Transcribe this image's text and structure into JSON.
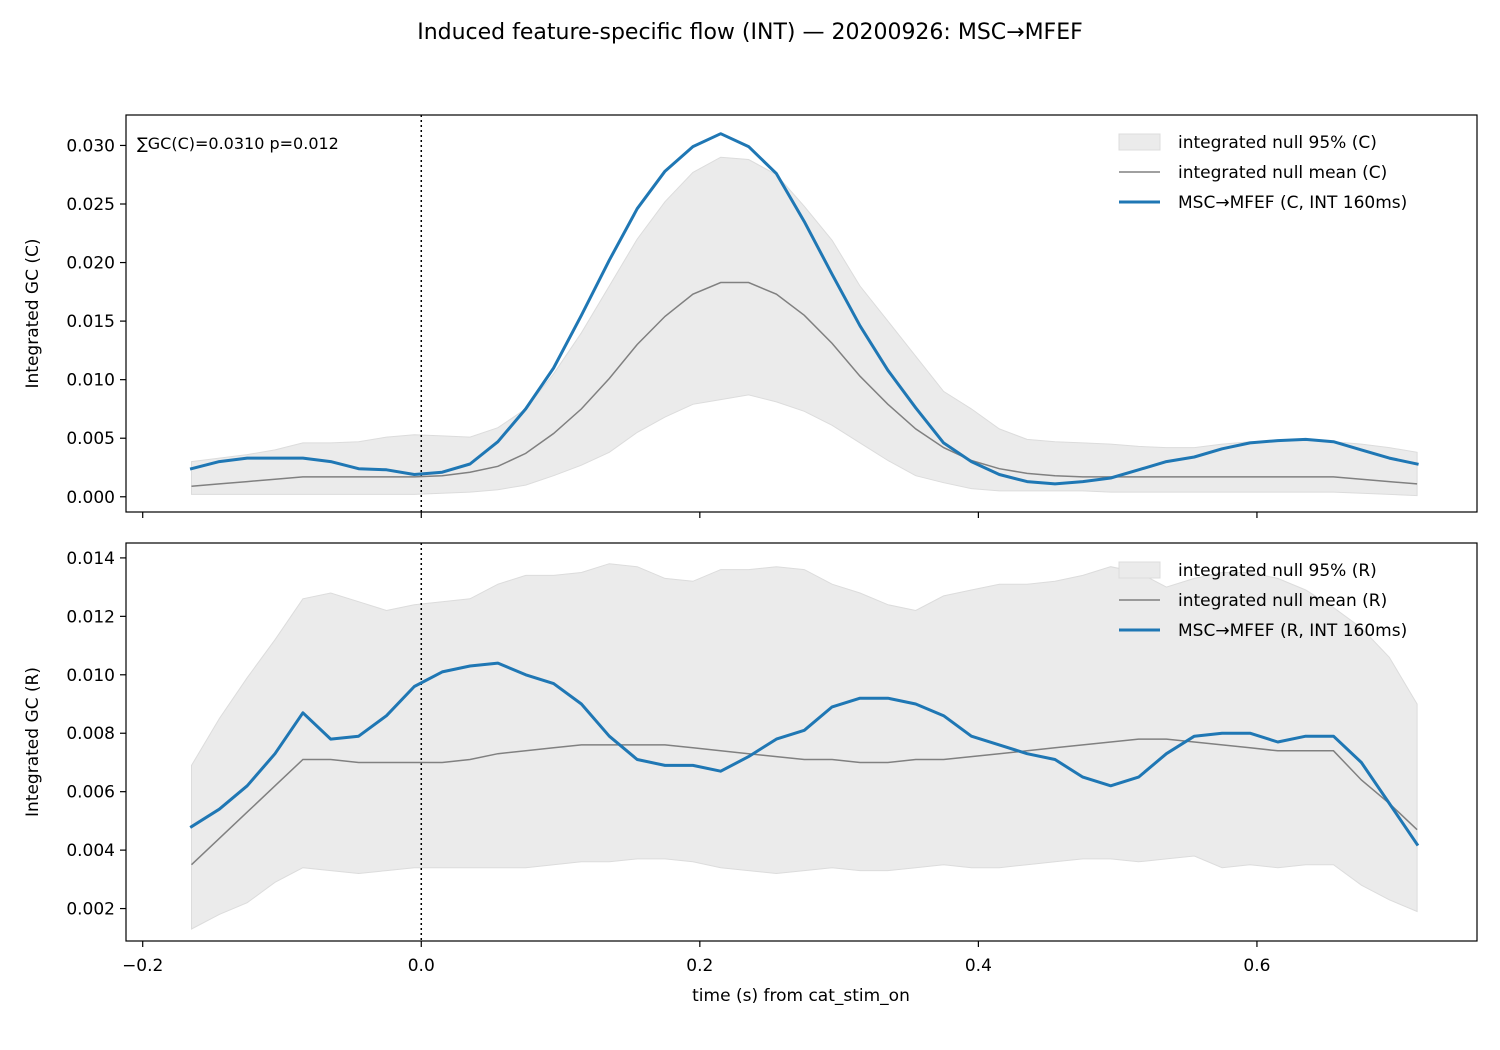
{
  "figure": {
    "title": "Induced feature-specific flow (INT) — 20200926: MSC→MFEF",
    "xlabel": "time (s) from cat_stim_on"
  },
  "colors": {
    "band": "#ebebeb",
    "band_edge": "#dcdcdc",
    "null_mean": "#808080",
    "observed": "#1f77b4",
    "axis": "#000000"
  },
  "chart_data": [
    {
      "type": "line",
      "panel": "C",
      "ylabel": "Integrated GC (C)",
      "annotation": "∑GC(C)=0.0310  p=0.012",
      "xlim": [
        -0.212,
        0.758
      ],
      "ylim": [
        -0.0013,
        0.0326
      ],
      "xticks": [
        -0.2,
        0.0,
        0.2,
        0.4,
        0.6
      ],
      "yticks": [
        0.0,
        0.005,
        0.01,
        0.015,
        0.02,
        0.025,
        0.03
      ],
      "ytick_labels": [
        "0.000",
        "0.005",
        "0.010",
        "0.015",
        "0.020",
        "0.025",
        "0.030"
      ],
      "event_line_x": 0.0,
      "legend_position": "upper right",
      "legend": [
        {
          "label": "integrated null 95% (C)",
          "kind": "band"
        },
        {
          "label": "integrated null mean (C)",
          "kind": "mean"
        },
        {
          "label": "MSC→MFEF (C, INT 160ms)",
          "kind": "observed"
        }
      ],
      "x": [
        -0.165,
        -0.145,
        -0.125,
        -0.105,
        -0.085,
        -0.065,
        -0.045,
        -0.025,
        -0.005,
        0.015,
        0.035,
        0.055,
        0.075,
        0.095,
        0.115,
        0.135,
        0.155,
        0.175,
        0.195,
        0.215,
        0.235,
        0.255,
        0.275,
        0.295,
        0.315,
        0.335,
        0.355,
        0.375,
        0.395,
        0.415,
        0.435,
        0.455,
        0.475,
        0.495,
        0.515,
        0.535,
        0.555,
        0.575,
        0.595,
        0.615,
        0.635,
        0.655,
        0.675,
        0.695,
        0.715
      ],
      "band_lower": [
        0.0002,
        0.0002,
        0.0002,
        0.0002,
        0.0002,
        0.0002,
        0.0002,
        0.0002,
        0.0002,
        0.0003,
        0.0004,
        0.0006,
        0.001,
        0.0018,
        0.0027,
        0.0038,
        0.0055,
        0.0068,
        0.0079,
        0.0083,
        0.0087,
        0.0081,
        0.0073,
        0.0061,
        0.0046,
        0.0031,
        0.0018,
        0.0012,
        0.0007,
        0.0005,
        0.0005,
        0.0005,
        0.0005,
        0.0004,
        0.0004,
        0.0004,
        0.0004,
        0.0004,
        0.0004,
        0.0004,
        0.0004,
        0.0004,
        0.0003,
        0.0002,
        0.0001
      ],
      "band_upper": [
        0.003,
        0.0033,
        0.0036,
        0.004,
        0.0046,
        0.0046,
        0.0047,
        0.0051,
        0.0053,
        0.0052,
        0.0051,
        0.0059,
        0.0075,
        0.0105,
        0.014,
        0.018,
        0.022,
        0.0252,
        0.0277,
        0.029,
        0.0288,
        0.0275,
        0.0248,
        0.0219,
        0.018,
        0.015,
        0.012,
        0.009,
        0.0075,
        0.0058,
        0.0049,
        0.0047,
        0.0046,
        0.0045,
        0.0043,
        0.0042,
        0.0042,
        0.0045,
        0.0047,
        0.0048,
        0.0048,
        0.0047,
        0.0045,
        0.0042,
        0.0038
      ],
      "null_mean": [
        0.0009,
        0.0011,
        0.0013,
        0.0015,
        0.0017,
        0.0017,
        0.0017,
        0.0017,
        0.0017,
        0.0018,
        0.0021,
        0.0026,
        0.0037,
        0.0054,
        0.0075,
        0.0101,
        0.013,
        0.0154,
        0.0173,
        0.0183,
        0.0183,
        0.0173,
        0.0155,
        0.0131,
        0.0103,
        0.0079,
        0.0058,
        0.0042,
        0.0031,
        0.0024,
        0.002,
        0.0018,
        0.0017,
        0.0017,
        0.0017,
        0.0017,
        0.0017,
        0.0017,
        0.0017,
        0.0017,
        0.0017,
        0.0017,
        0.0015,
        0.0013,
        0.0011
      ],
      "observed": [
        0.0024,
        0.003,
        0.0033,
        0.0033,
        0.0033,
        0.003,
        0.0024,
        0.0023,
        0.0019,
        0.0021,
        0.0028,
        0.0047,
        0.0075,
        0.011,
        0.0155,
        0.0202,
        0.0246,
        0.0278,
        0.0299,
        0.031,
        0.0299,
        0.0276,
        0.0235,
        0.019,
        0.0146,
        0.0108,
        0.0076,
        0.0046,
        0.003,
        0.0019,
        0.0013,
        0.0011,
        0.0013,
        0.0016,
        0.0023,
        0.003,
        0.0034,
        0.0041,
        0.0046,
        0.0048,
        0.0049,
        0.0047,
        0.004,
        0.0033,
        0.0028
      ]
    },
    {
      "type": "line",
      "panel": "R",
      "ylabel": "Integrated GC (R)",
      "xlim": [
        -0.212,
        0.758
      ],
      "ylim": [
        0.00089,
        0.01451
      ],
      "xticks": [
        -0.2,
        0.0,
        0.2,
        0.4,
        0.6
      ],
      "xtick_labels": [
        "−0.2",
        "0.0",
        "0.2",
        "0.4",
        "0.6"
      ],
      "yticks": [
        0.002,
        0.004,
        0.006,
        0.008,
        0.01,
        0.012,
        0.014
      ],
      "ytick_labels": [
        "0.002",
        "0.004",
        "0.006",
        "0.008",
        "0.010",
        "0.012",
        "0.014"
      ],
      "event_line_x": 0.0,
      "legend_position": "upper right",
      "legend": [
        {
          "label": "integrated null 95% (R)",
          "kind": "band"
        },
        {
          "label": "integrated null mean (R)",
          "kind": "mean"
        },
        {
          "label": "MSC→MFEF (R, INT 160ms)",
          "kind": "observed"
        }
      ],
      "x": [
        -0.165,
        -0.145,
        -0.125,
        -0.105,
        -0.085,
        -0.065,
        -0.045,
        -0.025,
        -0.005,
        0.015,
        0.035,
        0.055,
        0.075,
        0.095,
        0.115,
        0.135,
        0.155,
        0.175,
        0.195,
        0.215,
        0.235,
        0.255,
        0.275,
        0.295,
        0.315,
        0.335,
        0.355,
        0.375,
        0.395,
        0.415,
        0.435,
        0.455,
        0.475,
        0.495,
        0.515,
        0.535,
        0.555,
        0.575,
        0.595,
        0.615,
        0.635,
        0.655,
        0.675,
        0.695,
        0.715
      ],
      "band_lower": [
        0.0013,
        0.0018,
        0.0022,
        0.0029,
        0.0034,
        0.0033,
        0.0032,
        0.0033,
        0.0034,
        0.0034,
        0.0034,
        0.0034,
        0.0034,
        0.0035,
        0.0036,
        0.0036,
        0.0037,
        0.0037,
        0.0036,
        0.0034,
        0.0033,
        0.0032,
        0.0033,
        0.0034,
        0.0033,
        0.0033,
        0.0034,
        0.0035,
        0.0034,
        0.0034,
        0.0035,
        0.0036,
        0.0037,
        0.0037,
        0.0036,
        0.0037,
        0.0038,
        0.0034,
        0.0035,
        0.0034,
        0.0035,
        0.0035,
        0.0028,
        0.0023,
        0.0019
      ],
      "band_upper": [
        0.0069,
        0.0085,
        0.0099,
        0.0112,
        0.0126,
        0.0128,
        0.0125,
        0.0122,
        0.0124,
        0.0125,
        0.0126,
        0.0131,
        0.0134,
        0.0134,
        0.0135,
        0.0138,
        0.0137,
        0.0133,
        0.0132,
        0.0136,
        0.0136,
        0.0137,
        0.0136,
        0.0131,
        0.0128,
        0.0124,
        0.0122,
        0.0127,
        0.0129,
        0.0131,
        0.0131,
        0.0132,
        0.0134,
        0.0137,
        0.0135,
        0.013,
        0.0133,
        0.0135,
        0.0135,
        0.0133,
        0.0129,
        0.0123,
        0.0116,
        0.0106,
        0.009
      ],
      "null_mean": [
        0.0035,
        0.0044,
        0.0053,
        0.0062,
        0.0071,
        0.0071,
        0.007,
        0.007,
        0.007,
        0.007,
        0.0071,
        0.0073,
        0.0074,
        0.0075,
        0.0076,
        0.0076,
        0.0076,
        0.0076,
        0.0075,
        0.0074,
        0.0073,
        0.0072,
        0.0071,
        0.0071,
        0.007,
        0.007,
        0.0071,
        0.0071,
        0.0072,
        0.0073,
        0.0074,
        0.0075,
        0.0076,
        0.0077,
        0.0078,
        0.0078,
        0.0077,
        0.0076,
        0.0075,
        0.0074,
        0.0074,
        0.0074,
        0.0064,
        0.0056,
        0.0047
      ],
      "observed": [
        0.0048,
        0.0054,
        0.0062,
        0.0073,
        0.0087,
        0.0078,
        0.0079,
        0.0086,
        0.0096,
        0.0101,
        0.0103,
        0.0104,
        0.01,
        0.0097,
        0.009,
        0.0079,
        0.0071,
        0.0069,
        0.0069,
        0.0067,
        0.0072,
        0.0078,
        0.0081,
        0.0089,
        0.0092,
        0.0092,
        0.009,
        0.0086,
        0.0079,
        0.0076,
        0.0073,
        0.0071,
        0.0065,
        0.0062,
        0.0065,
        0.0073,
        0.0079,
        0.008,
        0.008,
        0.0077,
        0.0079,
        0.0079,
        0.007,
        0.0056,
        0.0042
      ]
    }
  ]
}
